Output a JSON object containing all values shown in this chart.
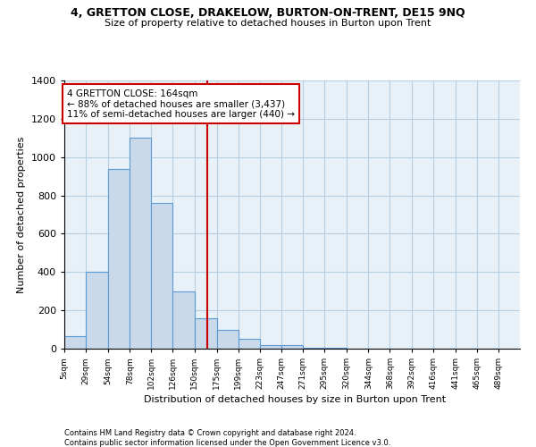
{
  "title": "4, GRETTON CLOSE, DRAKELOW, BURTON-ON-TRENT, DE15 9NQ",
  "subtitle": "Size of property relative to detached houses in Burton upon Trent",
  "xlabel": "Distribution of detached houses by size in Burton upon Trent",
  "ylabel": "Number of detached properties",
  "footnote1": "Contains HM Land Registry data © Crown copyright and database right 2024.",
  "footnote2": "Contains public sector information licensed under the Open Government Licence v3.0.",
  "annotation_line1": "4 GRETTON CLOSE: 164sqm",
  "annotation_line2": "← 88% of detached houses are smaller (3,437)",
  "annotation_line3": "11% of semi-detached houses are larger (440) →",
  "bar_color": "#c9d9ea",
  "bar_edge_color": "#5b9bd5",
  "grid_color": "#b8cfe0",
  "bg_color": "#e8f0f8",
  "vline_color": "#cc0000",
  "annotation_box_edge": "#cc0000",
  "bins": [
    5,
    29,
    54,
    78,
    102,
    126,
    150,
    175,
    199,
    223,
    247,
    271,
    295,
    320,
    344,
    368,
    392,
    416,
    441,
    465,
    489
  ],
  "counts": [
    65,
    400,
    940,
    1100,
    760,
    300,
    160,
    100,
    50,
    20,
    20,
    5,
    5,
    2,
    0,
    0,
    0,
    0,
    0,
    0
  ],
  "bin_labels": [
    "5sqm",
    "29sqm",
    "54sqm",
    "78sqm",
    "102sqm",
    "126sqm",
    "150sqm",
    "175sqm",
    "199sqm",
    "223sqm",
    "247sqm",
    "271sqm",
    "295sqm",
    "320sqm",
    "344sqm",
    "368sqm",
    "392sqm",
    "416sqm",
    "441sqm",
    "465sqm",
    "489sqm"
  ],
  "property_size": 164,
  "ylim": [
    0,
    1400
  ],
  "yticks": [
    0,
    200,
    400,
    600,
    800,
    1000,
    1200,
    1400
  ]
}
